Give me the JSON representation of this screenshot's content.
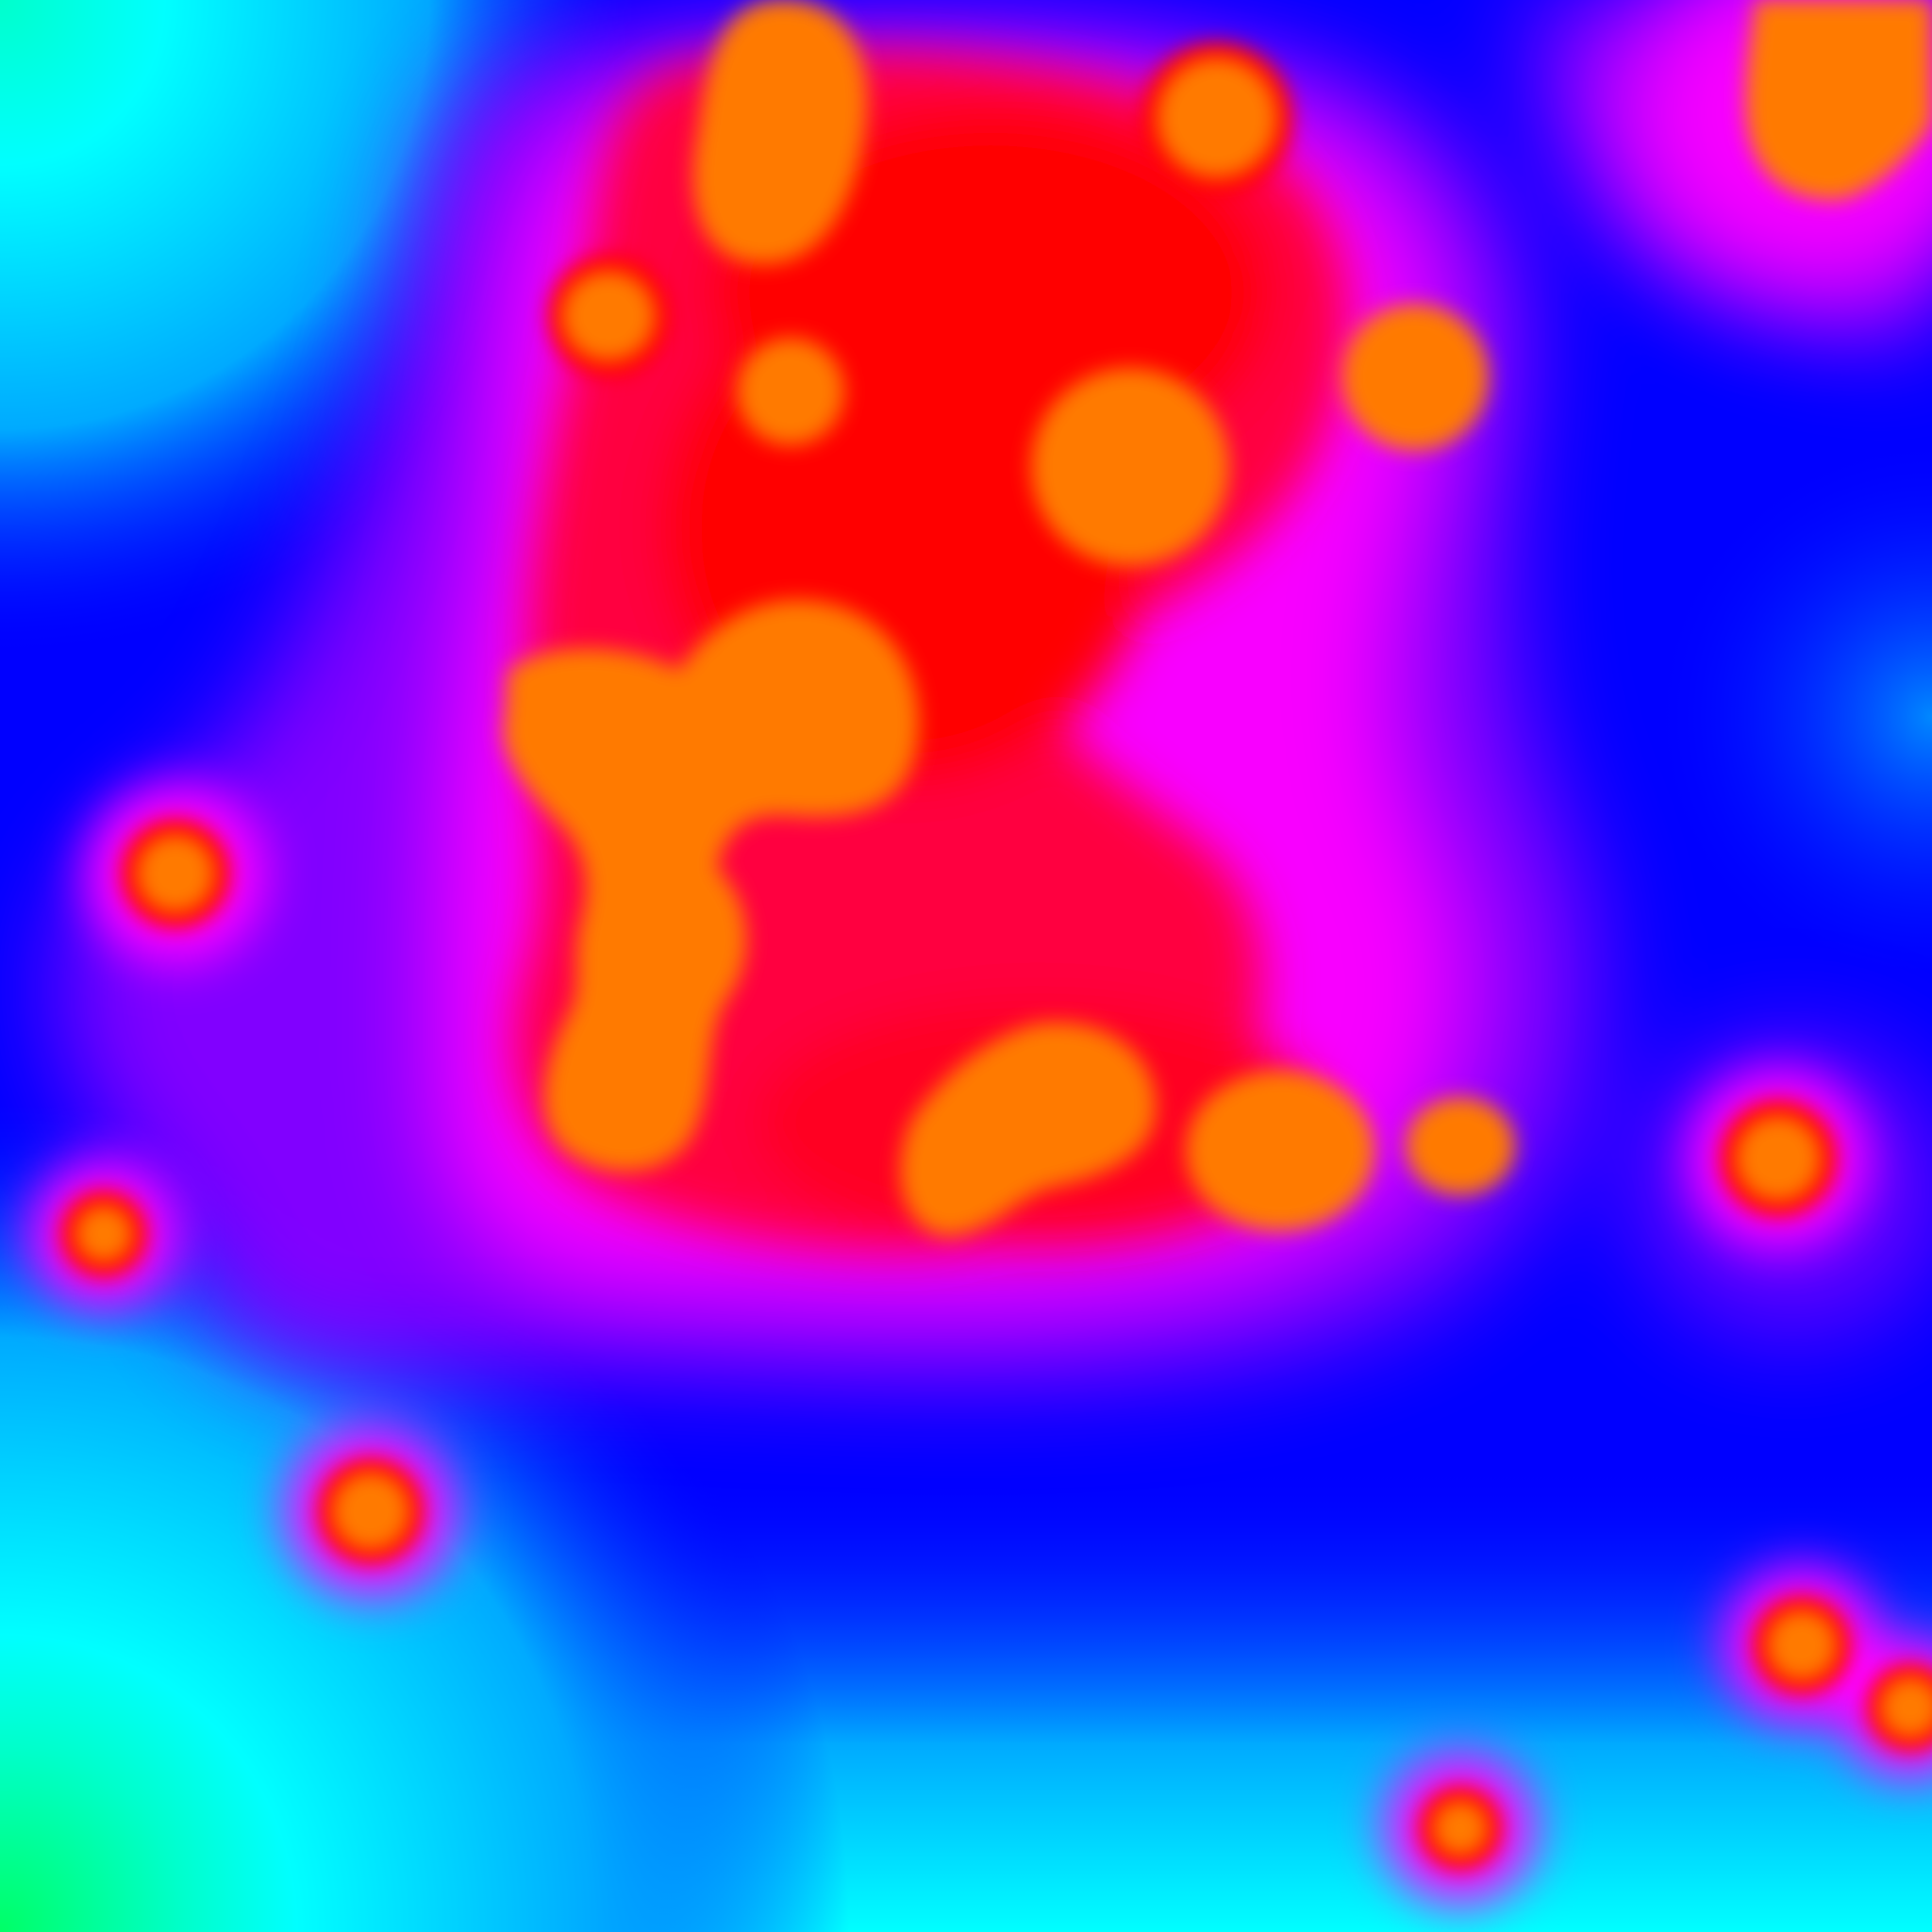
{
  "image": {
    "description_visible_text": "",
    "palette": {
      "core": "#ff7a00",
      "ring": "#ff0000",
      "mid": "#ff00ff",
      "low": "#0000ff",
      "lower": "#00ffff",
      "lowest": "#00ff66"
    }
  },
  "blobs": [
    {
      "name": "blob-top-left-oval"
    },
    {
      "name": "blob-top-center-circle"
    },
    {
      "name": "blob-top-right-corner"
    },
    {
      "name": "blob-small-left"
    },
    {
      "name": "blob-small-upper-middle"
    },
    {
      "name": "blob-large-center-circle"
    },
    {
      "name": "blob-right-upper-circle"
    },
    {
      "name": "blob-center-left-cluster"
    },
    {
      "name": "blob-lower-center-cluster"
    },
    {
      "name": "blob-lower-right-cluster"
    },
    {
      "name": "blob-right-middle-circle"
    },
    {
      "name": "blob-left-middle-circle"
    },
    {
      "name": "blob-left-lower-circle"
    },
    {
      "name": "blob-bottom-left-circle"
    },
    {
      "name": "blob-bottom-right-pair"
    },
    {
      "name": "blob-bottom-center-circle"
    }
  ]
}
